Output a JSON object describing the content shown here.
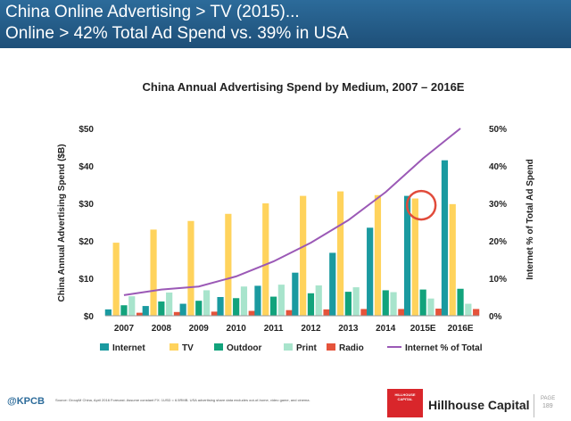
{
  "header": {
    "line1": "China Online Advertising > TV (2015)...",
    "line2": "Online > 42% Total Ad Spend vs. 39% in USA"
  },
  "chart_data": {
    "type": "bar",
    "title": "China Annual Advertising Spend by Medium, 2007 – 2016E",
    "ylabel": "China Annual Advertising Spend ($B)",
    "y2label": "Internet % of Total Ad Spend",
    "ylim": [
      0,
      50
    ],
    "y2lim": [
      0,
      50
    ],
    "yticks": [
      "$0",
      "$10",
      "$20",
      "$30",
      "$40",
      "$50"
    ],
    "y2ticks": [
      "0%",
      "10%",
      "20%",
      "30%",
      "40%",
      "50%"
    ],
    "categories": [
      "2007",
      "2008",
      "2009",
      "2010",
      "2011",
      "2012",
      "2013",
      "2014",
      "2015E",
      "2016E"
    ],
    "series": [
      {
        "name": "Internet",
        "type": "bar",
        "color": "#1a9aa0",
        "values": [
          1.7,
          2.6,
          3.2,
          5.0,
          8.0,
          11.5,
          16.8,
          23.5,
          32.0,
          41.5
        ]
      },
      {
        "name": "TV",
        "type": "bar",
        "color": "#ffd35c",
        "values": [
          19.5,
          23.0,
          25.3,
          27.2,
          30.0,
          32.0,
          33.2,
          32.2,
          31.3,
          29.8
        ]
      },
      {
        "name": "Outdoor",
        "type": "bar",
        "color": "#12a37c",
        "values": [
          2.8,
          3.8,
          4.0,
          4.7,
          5.1,
          6.0,
          6.4,
          6.8,
          7.0,
          7.2
        ]
      },
      {
        "name": "Print",
        "type": "bar",
        "color": "#a8e4cc",
        "values": [
          5.2,
          6.2,
          6.8,
          7.8,
          8.3,
          8.1,
          7.6,
          6.3,
          4.6,
          3.2
        ]
      },
      {
        "name": "Radio",
        "type": "bar",
        "color": "#e5533b",
        "values": [
          0.8,
          1.0,
          1.1,
          1.3,
          1.5,
          1.7,
          1.8,
          1.8,
          1.9,
          1.8
        ]
      },
      {
        "name": "Internet % of Total",
        "type": "line",
        "axis": "right",
        "color": "#9b59b6",
        "values": [
          5.5,
          7.0,
          7.8,
          10.5,
          14.5,
          19.5,
          25.5,
          33.0,
          42.0,
          50.0
        ]
      }
    ],
    "annotation": {
      "shape": "circle",
      "category": "2015E",
      "color": "#e14b3b"
    },
    "legend": "bottom",
    "grid": false
  },
  "footer": {
    "brand": "@KPCB",
    "source": "Source: GroupM China, April 2016 Forecast. Assume constant FX: 1USD = 6.5RMB. USA advertising share data excludes out-of-home, video game, and cinema.",
    "logo_text": "HILLHOUSE CAPITAL",
    "company": "Hillhouse Capital",
    "page_label": "PAGE",
    "page_number": "189"
  }
}
